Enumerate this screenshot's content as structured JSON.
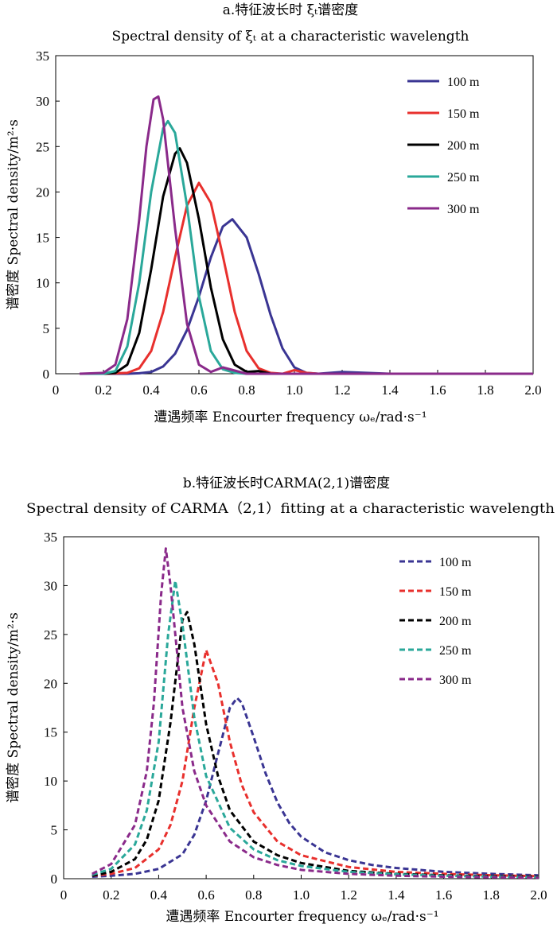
{
  "chart_data": [
    {
      "type": "line",
      "line_style": "solid",
      "title_cn": "a.特征波长时 ξₜ谱密度",
      "title_en": "Spectral density of  ξₜ at a characteristic wavelength",
      "xlabel": "遭遇频率 Encourter frequency ωₑ/rad·s⁻¹",
      "ylabel": "谱密度 Spectral density/m²·s",
      "xlim": [
        0,
        2.0
      ],
      "ylim": [
        0,
        35
      ],
      "xticks": [
        "0",
        "0.2",
        "0.4",
        "0.6",
        "0.8",
        "1.0",
        "1.2",
        "1.4",
        "1.6",
        "1.8",
        "2.0"
      ],
      "yticks": [
        "0",
        "5",
        "10",
        "15",
        "20",
        "25",
        "30",
        "35"
      ],
      "legend_position": "top-right",
      "series": [
        {
          "name": "100 m",
          "color": "#3a3593",
          "x": [
            0.1,
            0.2,
            0.3,
            0.35,
            0.4,
            0.45,
            0.5,
            0.55,
            0.6,
            0.65,
            0.7,
            0.74,
            0.8,
            0.85,
            0.9,
            0.95,
            1.0,
            1.05,
            1.1,
            1.2,
            1.4,
            1.6,
            1.8,
            2.0
          ],
          "y": [
            0,
            0,
            0,
            0.05,
            0.2,
            0.8,
            2.2,
            4.8,
            8.5,
            12.8,
            16.2,
            17.0,
            15.0,
            11.0,
            6.5,
            2.8,
            0.7,
            0.1,
            0,
            0.2,
            0,
            0,
            0,
            0
          ]
        },
        {
          "name": "150 m",
          "color": "#e8302d",
          "x": [
            0.1,
            0.2,
            0.3,
            0.35,
            0.4,
            0.45,
            0.5,
            0.55,
            0.6,
            0.65,
            0.7,
            0.75,
            0.8,
            0.85,
            0.9,
            0.95,
            1.0,
            1.05,
            1.1,
            1.2,
            1.4,
            1.6,
            1.8,
            2.0
          ],
          "y": [
            0,
            0,
            0.1,
            0.6,
            2.5,
            6.8,
            12.8,
            18.5,
            21.0,
            18.8,
            13.0,
            6.8,
            2.5,
            0.6,
            0.1,
            0,
            0.4,
            0.1,
            0,
            0,
            0,
            0,
            0,
            0
          ]
        },
        {
          "name": "200 m",
          "color": "#000000",
          "x": [
            0.1,
            0.2,
            0.25,
            0.3,
            0.35,
            0.4,
            0.45,
            0.5,
            0.52,
            0.55,
            0.6,
            0.65,
            0.7,
            0.75,
            0.8,
            0.85,
            0.9,
            1.0,
            1.2,
            1.4,
            1.6,
            1.8,
            2.0
          ],
          "y": [
            0,
            0,
            0.1,
            1.0,
            4.5,
            11.5,
            19.5,
            24.2,
            24.8,
            23.2,
            17.0,
            9.5,
            3.8,
            1.0,
            0.2,
            0.3,
            0,
            0,
            0,
            0,
            0,
            0,
            0
          ]
        },
        {
          "name": "250 m",
          "color": "#2aa89a",
          "x": [
            0.1,
            0.2,
            0.25,
            0.3,
            0.35,
            0.4,
            0.45,
            0.47,
            0.5,
            0.55,
            0.6,
            0.65,
            0.7,
            0.75,
            0.8,
            0.9,
            1.0,
            1.2,
            1.4,
            1.6,
            1.8,
            2.0
          ],
          "y": [
            0,
            0,
            0.3,
            3.0,
            10.0,
            20.0,
            27.0,
            27.8,
            26.5,
            18.5,
            8.5,
            2.5,
            0.5,
            0.1,
            0,
            0,
            0,
            0,
            0,
            0,
            0,
            0
          ]
        },
        {
          "name": "300 m",
          "color": "#8a2a8a",
          "x": [
            0.1,
            0.2,
            0.25,
            0.3,
            0.35,
            0.38,
            0.41,
            0.43,
            0.45,
            0.5,
            0.55,
            0.6,
            0.65,
            0.7,
            0.8,
            1.0,
            1.2,
            1.4,
            1.6,
            1.8,
            2.0
          ],
          "y": [
            0,
            0.1,
            1.0,
            6.0,
            17.0,
            25.0,
            30.2,
            30.5,
            28.0,
            16.0,
            5.5,
            1.0,
            0.2,
            0.7,
            0,
            0,
            0,
            0,
            0,
            0,
            0
          ]
        }
      ]
    },
    {
      "type": "line",
      "line_style": "dashed",
      "title_cn": "b.特征波长时CARMA(2,1)谱密度",
      "title_en": "Spectral density of CARMA（2,1）fitting at a characteristic wavelength",
      "xlabel": "遭遇频率 Encourter frequency ωₑ/rad·s⁻¹",
      "ylabel": "谱密度 Spectral density/m²·s",
      "xlim": [
        0,
        2.0
      ],
      "ylim": [
        0,
        35
      ],
      "xticks": [
        "0",
        "0.2",
        "0.4",
        "0.6",
        "0.8",
        "1.0",
        "1.2",
        "1.4",
        "1.6",
        "1.8",
        "2.0"
      ],
      "yticks": [
        "0",
        "5",
        "10",
        "15",
        "20",
        "25",
        "30",
        "35"
      ],
      "legend_position": "top-right",
      "series": [
        {
          "name": "100 m",
          "color": "#3a3593",
          "x": [
            0.12,
            0.2,
            0.3,
            0.4,
            0.5,
            0.55,
            0.6,
            0.65,
            0.7,
            0.73,
            0.75,
            0.8,
            0.85,
            0.9,
            0.95,
            1.0,
            1.1,
            1.2,
            1.3,
            1.4,
            1.6,
            1.8,
            2.0
          ],
          "y": [
            0.2,
            0.3,
            0.5,
            1.0,
            2.5,
            4.5,
            8.0,
            12.8,
            17.5,
            18.5,
            18.0,
            14.5,
            10.8,
            7.8,
            5.7,
            4.3,
            2.7,
            1.9,
            1.4,
            1.1,
            0.7,
            0.5,
            0.35
          ]
        },
        {
          "name": "150 m",
          "color": "#e8302d",
          "x": [
            0.12,
            0.2,
            0.3,
            0.4,
            0.45,
            0.5,
            0.55,
            0.6,
            0.65,
            0.7,
            0.75,
            0.8,
            0.9,
            1.0,
            1.2,
            1.4,
            1.6,
            1.8,
            2.0
          ],
          "y": [
            0.3,
            0.5,
            1.1,
            3.0,
            5.5,
            10.0,
            17.5,
            23.4,
            20.0,
            14.0,
            9.6,
            6.8,
            3.8,
            2.4,
            1.2,
            0.7,
            0.5,
            0.35,
            0.25
          ]
        },
        {
          "name": "200 m",
          "color": "#000000",
          "x": [
            0.12,
            0.2,
            0.3,
            0.35,
            0.4,
            0.45,
            0.5,
            0.52,
            0.55,
            0.6,
            0.65,
            0.7,
            0.8,
            0.9,
            1.0,
            1.2,
            1.4,
            1.6,
            1.8,
            2.0
          ],
          "y": [
            0.3,
            0.7,
            2.0,
            4.0,
            8.0,
            16.0,
            26.5,
            27.3,
            24.0,
            15.8,
            10.5,
            7.0,
            3.8,
            2.4,
            1.6,
            0.8,
            0.5,
            0.35,
            0.25,
            0.2
          ]
        },
        {
          "name": "250 m",
          "color": "#2aa89a",
          "x": [
            0.12,
            0.2,
            0.3,
            0.35,
            0.4,
            0.44,
            0.47,
            0.5,
            0.55,
            0.6,
            0.7,
            0.8,
            0.9,
            1.0,
            1.2,
            1.4,
            1.6,
            1.8,
            2.0
          ],
          "y": [
            0.4,
            1.0,
            3.5,
            7.0,
            14.0,
            25.0,
            30.5,
            26.0,
            16.5,
            10.5,
            5.2,
            3.0,
            1.9,
            1.3,
            0.7,
            0.45,
            0.3,
            0.2,
            0.15
          ]
        },
        {
          "name": "300 m",
          "color": "#8a2a8a",
          "x": [
            0.12,
            0.2,
            0.3,
            0.35,
            0.38,
            0.41,
            0.43,
            0.45,
            0.5,
            0.55,
            0.6,
            0.7,
            0.8,
            0.9,
            1.0,
            1.2,
            1.4,
            1.6,
            1.8,
            2.0
          ],
          "y": [
            0.5,
            1.5,
            5.5,
            11.0,
            18.0,
            29.0,
            33.8,
            30.0,
            17.5,
            11.0,
            7.5,
            3.8,
            2.2,
            1.4,
            0.9,
            0.5,
            0.3,
            0.2,
            0.15,
            0.1
          ]
        }
      ]
    }
  ]
}
